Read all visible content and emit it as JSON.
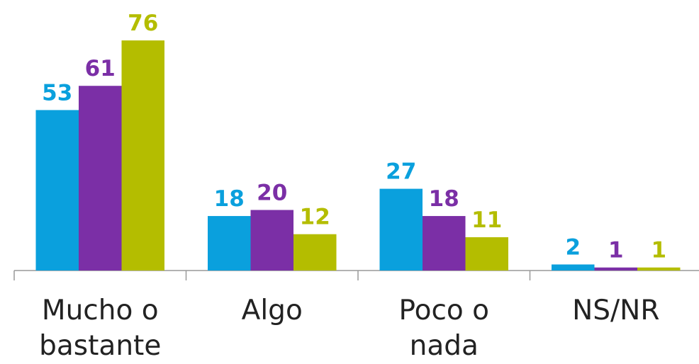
{
  "chart_data": {
    "type": "bar",
    "categories": [
      "Mucho o bastante",
      "Algo",
      "Poco o nada",
      "NS/NR"
    ],
    "series": [
      {
        "color": "#0aa0dd",
        "values": [
          53,
          18,
          27,
          2
        ]
      },
      {
        "color": "#7b2fa6",
        "values": [
          61,
          20,
          18,
          1
        ]
      },
      {
        "color": "#b4bd00",
        "values": [
          76,
          12,
          11,
          1
        ]
      }
    ],
    "ylim": [
      0,
      80
    ]
  }
}
